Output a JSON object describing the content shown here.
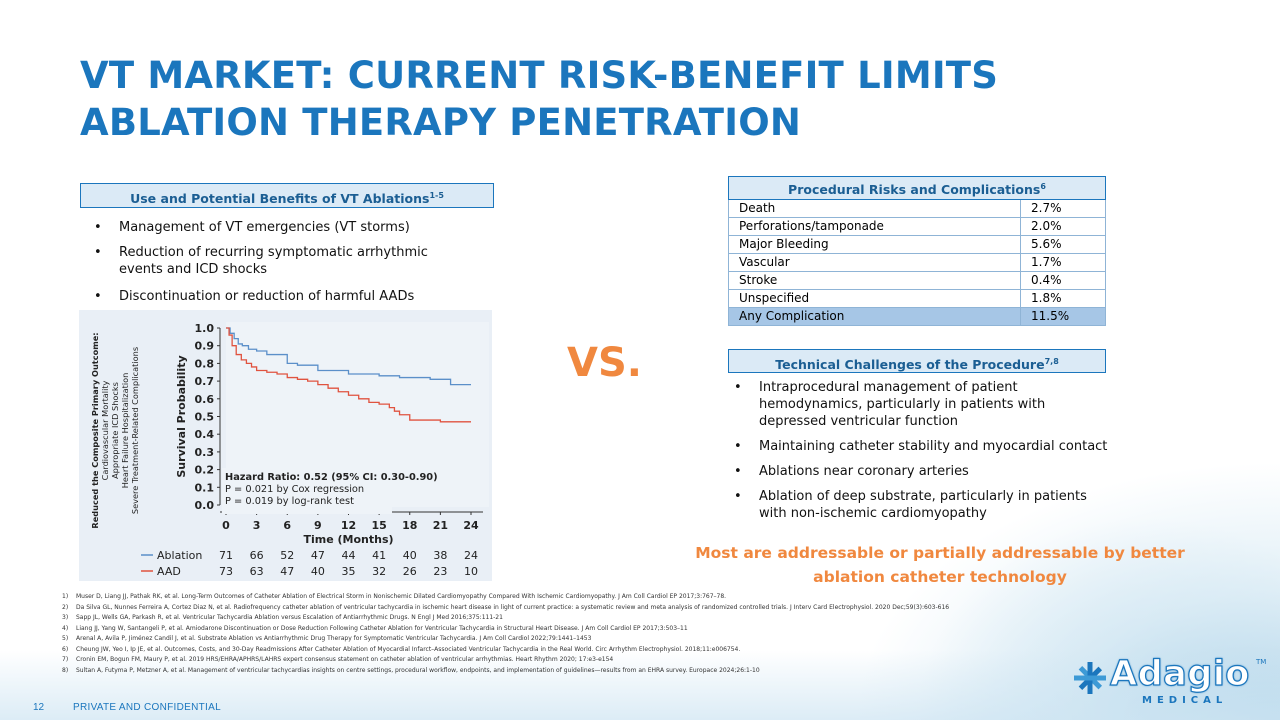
{
  "slide": {
    "title": "VT MARKET: CURRENT RISK-BENEFIT LIMITS ABLATION THERAPY PENETRATION",
    "page_number": "12",
    "footer": "PRIVATE AND CONFIDENTIAL",
    "vs": "VS.",
    "callout": "Most are addressable or partially addressable by better ablation catheter technology"
  },
  "benefits": {
    "header": "Use and Potential Benefits of VT Ablations",
    "header_sup": "1-5",
    "items": [
      "Management of VT emergencies (VT storms)",
      "Reduction of recurring symptomatic arrhythmic events and ICD shocks",
      "Discontinuation or reduction of harmful AADs"
    ]
  },
  "risks": {
    "header": "Procedural Risks and Complications",
    "header_sup": "6",
    "rows": [
      {
        "label": "Death",
        "value": "2.7%"
      },
      {
        "label": "Perforations/tamponade",
        "value": "2.0%"
      },
      {
        "label": "Major Bleeding",
        "value": "5.6%"
      },
      {
        "label": "Vascular",
        "value": "1.7%"
      },
      {
        "label": "Stroke",
        "value": "0.4%"
      },
      {
        "label": "Unspecified",
        "value": "1.8%"
      },
      {
        "label": "Any Complication",
        "value": "11.5%"
      }
    ]
  },
  "challenges": {
    "header": "Technical Challenges of the Procedure",
    "header_sup": "7,8",
    "items": [
      "Intraprocedural management of patient hemodynamics, particularly in patients with depressed ventricular function",
      "Maintaining catheter stability and myocardial contact",
      "Ablations near coronary arteries",
      "Ablation of deep substrate, particularly in patients with non-ischemic cardiomyopathy"
    ]
  },
  "chart_data": {
    "type": "line",
    "ylabel": "Survival Probability",
    "xlabel": "Time (Months)",
    "side_label": [
      "Reduced the Composite Primary Outcome:",
      "Cardiovascular Mortality",
      "Appropriate ICD Shocks",
      "Heart Failure Hospitalization",
      "Severe Treatment-Related Complications"
    ],
    "ylim": [
      0.0,
      1.0
    ],
    "yticks": [
      "1.0",
      "0.9",
      "0.8",
      "0.7",
      "0.6",
      "0.5",
      "0.4",
      "0.3",
      "0.2",
      "0.1",
      "0.0"
    ],
    "xticks": [
      0,
      3,
      6,
      9,
      12,
      15,
      18,
      21,
      24
    ],
    "annotation": [
      "Hazard Ratio: 0.52 (95% CI: 0.30-0.90)",
      "P = 0.021 by Cox regression",
      "P = 0.019 by log-rank test"
    ],
    "series": [
      {
        "name": "Ablation",
        "color": "#5b8fc9",
        "x": [
          0,
          0.4,
          0.8,
          1.2,
          1.6,
          2.2,
          3,
          4,
          6,
          7,
          9,
          12,
          14,
          15,
          17,
          18,
          20,
          21,
          22,
          24
        ],
        "y": [
          1.0,
          0.97,
          0.94,
          0.91,
          0.9,
          0.88,
          0.87,
          0.85,
          0.8,
          0.79,
          0.76,
          0.74,
          0.74,
          0.73,
          0.72,
          0.72,
          0.71,
          0.71,
          0.68,
          0.68
        ],
        "at_risk": [
          "71",
          "66",
          "52",
          "47",
          "44",
          "41",
          "40",
          "38",
          "24"
        ]
      },
      {
        "name": "AAD",
        "color": "#e0533f",
        "x": [
          0,
          0.3,
          0.6,
          1,
          1.5,
          2,
          2.5,
          3,
          4,
          5,
          6,
          7,
          8,
          9,
          10,
          11,
          12,
          13,
          14,
          15,
          16,
          16.5,
          17,
          18,
          21,
          24
        ],
        "y": [
          1.0,
          0.96,
          0.9,
          0.85,
          0.82,
          0.8,
          0.78,
          0.76,
          0.75,
          0.74,
          0.72,
          0.71,
          0.7,
          0.68,
          0.66,
          0.64,
          0.62,
          0.6,
          0.58,
          0.57,
          0.55,
          0.53,
          0.51,
          0.48,
          0.47,
          0.47
        ],
        "at_risk": [
          "73",
          "63",
          "47",
          "40",
          "35",
          "32",
          "26",
          "23",
          "10"
        ]
      }
    ]
  },
  "references": [
    {
      "n": "1)",
      "text": "Muser D, Liang JJ, Pathak RK, et al. Long-Term Outcomes of Catheter Ablation of Electrical Storm in Nonischemic Dilated Cardiomyopathy Compared With Ischemic Cardiomyopathy. J Am Coll Cardiol EP 2017;3:767–78."
    },
    {
      "n": "2)",
      "text": "Da Silva GL, Nunnes Ferreira A, Cortez Diaz N, et al. Radiofrequency catheter ablation of ventricular tachycardia in ischemic heart disease in light of current practice: a systematic review and meta analysis of randomized controlled trials. J Interv Card Electrophysiol. 2020 Dec;59(3):603-616"
    },
    {
      "n": "3)",
      "text": "Sapp JL, Wells GA, Parkash R, et al. Ventricular Tachycardia Ablation versus Escalation of Antiarrhythmic Drugs. N Engl J Med 2016;375:111-21"
    },
    {
      "n": "4)",
      "text": "Liang JJ, Yang W, Santangeli P, et al. Amiodarone Discontinuation or Dose Reduction Following Catheter Ablation for Ventricular Tachycardia in Structural Heart Disease. J Am Coll Cardiol EP 2017;3:503–11"
    },
    {
      "n": "5)",
      "text": "Arenal A, Avila P, Jiménez Candil J, et al. Substrate Ablation vs Antiarrhythmic Drug Therapy for Symptomatic Ventricular Tachycardia. J Am Coll Cardiol 2022;79:1441–1453"
    },
    {
      "n": "6)",
      "text": "Cheung JW, Yeo I, Ip JE, et al. Outcomes, Costs, and 30-Day Readmissions After Catheter Ablation of Myocardial Infarct–Associated Ventricular Tachycardia in the Real World. Circ Arrhythm Electrophysiol. 2018;11:e006754."
    },
    {
      "n": "7)",
      "text": "Cronin EM, Bogun FM, Maury P, et al. 2019 HRS/EHRA/APHRS/LAHRS expert consensus statement on catheter ablation of ventricular arrhythmias. Heart Rhythm 2020; 17:e3-e154"
    },
    {
      "n": "8)",
      "text": "Sultan A, Futyma P, Metzner A, et al. Management of ventricular tachycardias insights on centre settings, procedural workflow, endpoints, and implementation of guidelines—results from an EHRA survey. Europace 2024;26:1-10"
    }
  ],
  "logo": {
    "name": "Adagio",
    "sub": "MEDICAL",
    "tm": "TM"
  }
}
